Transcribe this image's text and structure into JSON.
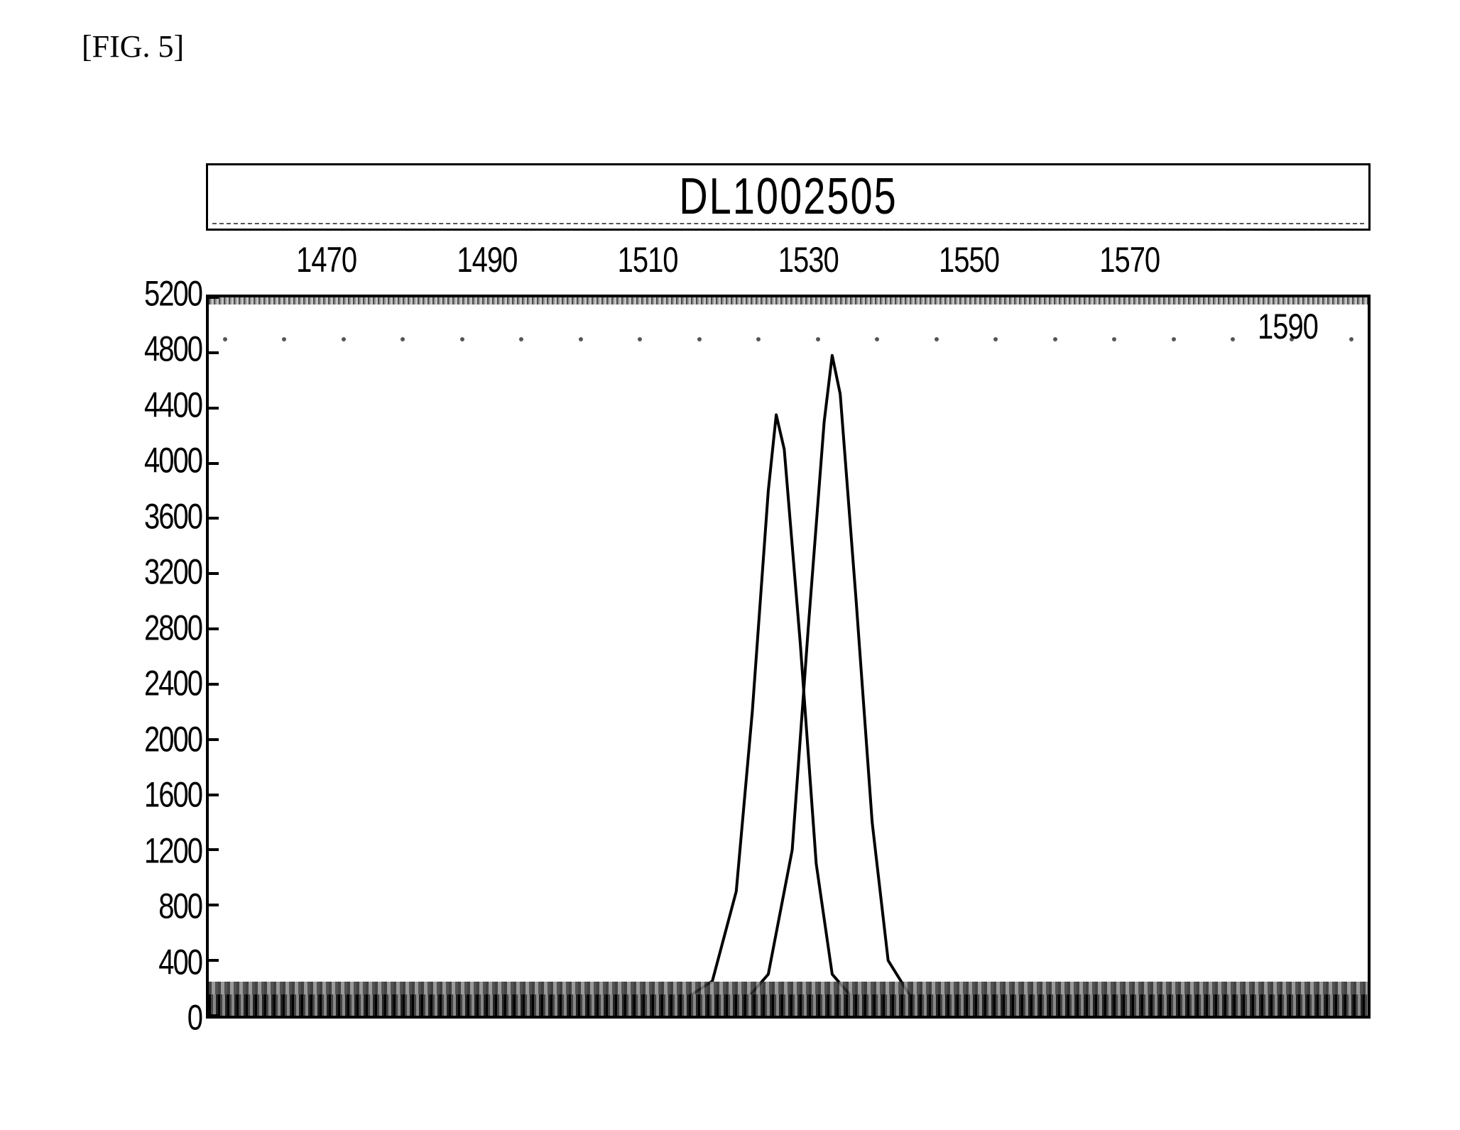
{
  "figure_label": "[FIG. 5]",
  "chart": {
    "type": "line",
    "title": "DL1002505",
    "title_fontsize": 56,
    "background_color": "#ffffff",
    "border_color": "#000000",
    "axis_font_color": "#000000",
    "tick_fontsize": 40,
    "xlim": [
      1455,
      1600
    ],
    "ylim": [
      0,
      5200
    ],
    "x_ticks": [
      1470,
      1490,
      1510,
      1530,
      1550,
      1570
    ],
    "x_tick_extra": {
      "value": 1590,
      "inside": true
    },
    "y_ticks": [
      5200,
      4800,
      4400,
      4000,
      3600,
      3200,
      2800,
      2400,
      2000,
      1600,
      1200,
      800,
      400,
      0
    ],
    "y_tick_step": 400,
    "line_color": "#000000",
    "line_width": 4,
    "series": [
      {
        "name": "peak-left",
        "points": [
          [
            1455,
            70
          ],
          [
            1500,
            80
          ],
          [
            1514,
            100
          ],
          [
            1518,
            250
          ],
          [
            1521,
            900
          ],
          [
            1523,
            2200
          ],
          [
            1525,
            3800
          ],
          [
            1526,
            4350
          ],
          [
            1527,
            4100
          ],
          [
            1529,
            2700
          ],
          [
            1531,
            1100
          ],
          [
            1533,
            300
          ],
          [
            1536,
            100
          ],
          [
            1545,
            80
          ],
          [
            1600,
            70
          ]
        ]
      },
      {
        "name": "peak-right",
        "points": [
          [
            1455,
            60
          ],
          [
            1510,
            70
          ],
          [
            1522,
            100
          ],
          [
            1525,
            300
          ],
          [
            1528,
            1200
          ],
          [
            1530,
            2800
          ],
          [
            1532,
            4300
          ],
          [
            1533,
            4780
          ],
          [
            1534,
            4500
          ],
          [
            1536,
            3000
          ],
          [
            1538,
            1400
          ],
          [
            1540,
            400
          ],
          [
            1543,
            120
          ],
          [
            1555,
            70
          ],
          [
            1600,
            65
          ]
        ]
      }
    ],
    "noise_color_top": "#666666",
    "noise_color_bottom": "#222222"
  }
}
